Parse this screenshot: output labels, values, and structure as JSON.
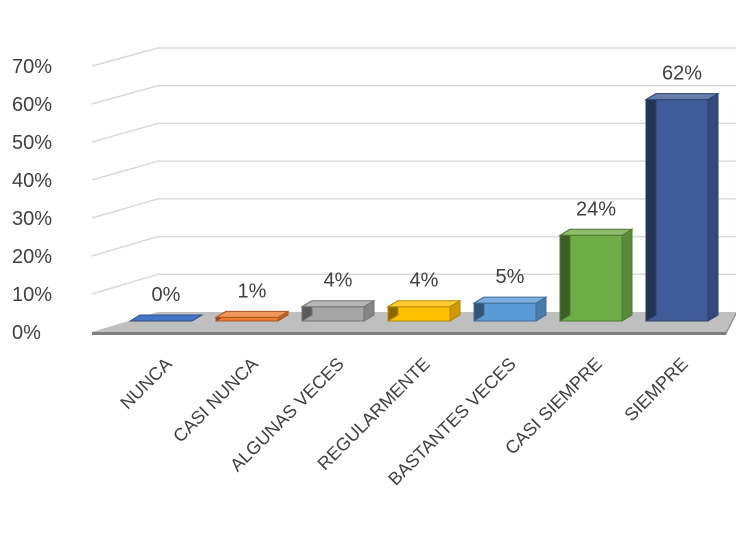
{
  "chart_data": {
    "type": "bar",
    "categories": [
      "NUNCA",
      "CASI NUNCA",
      "ALGUNAS VECES",
      "REGULARMENTE",
      "BASTANTES VECES",
      "CASI SIEMPRE",
      "SIEMPRE"
    ],
    "values": [
      0,
      1,
      4,
      4,
      5,
      24,
      62
    ],
    "value_labels": [
      "0%",
      "1%",
      "4%",
      "4%",
      "5%",
      "24%",
      "62%"
    ],
    "y_ticks": [
      "0%",
      "10%",
      "20%",
      "30%",
      "40%",
      "50%",
      "60%",
      "70%"
    ],
    "ylim": [
      0,
      70
    ],
    "grid": true,
    "legend": "none",
    "three_d": true,
    "colors": [
      "#4472c4",
      "#ed7d31",
      "#a5a5a5",
      "#ffc000",
      "#5b9bd5",
      "#70ad47",
      "#3f5c99"
    ]
  }
}
